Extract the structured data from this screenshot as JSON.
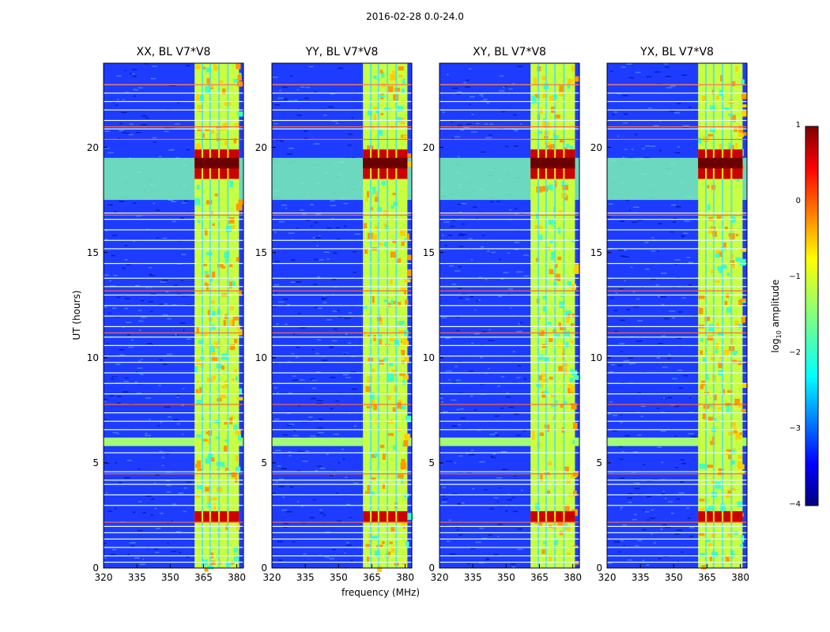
{
  "chart_data": {
    "type": "heatmap",
    "suptitle": "2016-02-28 0.0-24.0",
    "xlabel": "frequency (MHz)",
    "ylabel": "UT (hours)",
    "xlim": [
      320,
      383
    ],
    "ylim": [
      0,
      24
    ],
    "xticks": [
      "320",
      "335",
      "350",
      "365",
      "380"
    ],
    "yticks": [
      "0",
      "5",
      "10",
      "15",
      "20"
    ],
    "panels": [
      {
        "title": "XX, BL V7*V8"
      },
      {
        "title": "YY, BL V7*V8"
      },
      {
        "title": "XY, BL V7*V8"
      },
      {
        "title": "YX, BL V7*V8"
      }
    ],
    "colorbar": {
      "label": "log",
      "label_sub": "10",
      "label_rest": " amplitude",
      "range": [
        -4,
        1
      ],
      "ticks": [
        "1",
        "0",
        "−1",
        "−2",
        "−3",
        "−4"
      ],
      "colormap": "jet"
    },
    "rfi_band_mhz": [
      361,
      381
    ],
    "strong_rfi_hours": [
      [
        18.5,
        19.9
      ],
      [
        2.2,
        2.7
      ]
    ],
    "broadband_rfi_hours": [
      [
        17.5,
        19.5
      ],
      [
        5.8,
        6.2
      ]
    ]
  }
}
